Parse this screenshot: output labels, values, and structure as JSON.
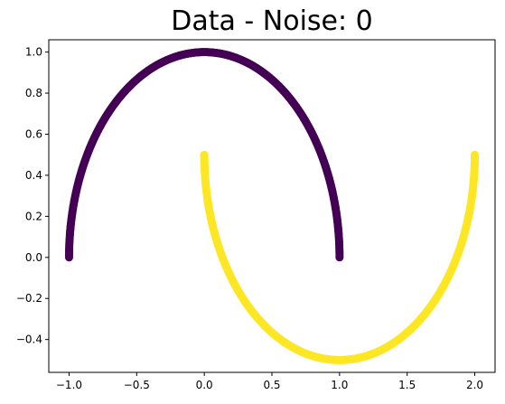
{
  "chart_data": {
    "type": "scatter",
    "title": "Data - Noise: 0",
    "xlabel": "",
    "ylabel": "",
    "xlim": [
      -1.15,
      2.15
    ],
    "ylim": [
      -0.56,
      1.06
    ],
    "x_ticks": [
      -1.0,
      -0.5,
      0.0,
      0.5,
      1.0,
      1.5,
      2.0
    ],
    "x_tick_labels": [
      "−1.0",
      "−0.5",
      "0.0",
      "0.5",
      "1.0",
      "1.5",
      "2.0"
    ],
    "y_ticks": [
      -0.4,
      -0.2,
      0.0,
      0.2,
      0.4,
      0.6,
      0.8,
      1.0
    ],
    "y_tick_labels": [
      "−0.4",
      "−0.2",
      "0.0",
      "0.2",
      "0.4",
      "0.6",
      "0.8",
      "1.0"
    ],
    "grid": false,
    "series": [
      {
        "color": "#440154",
        "n_points": 500,
        "shape": "upper moon: x = cos(t), y = sin(t), t in [0, pi]",
        "x_range": [
          -1.0,
          1.0
        ],
        "y_range": [
          0.0,
          1.0
        ]
      },
      {
        "color": "#fde725",
        "n_points": 500,
        "shape": "lower moon: x = 1 - cos(t), y = 0.5 - sin(t), t in [0, pi]",
        "x_range": [
          0.0,
          2.0
        ],
        "y_range": [
          -0.5,
          0.5
        ]
      }
    ]
  }
}
